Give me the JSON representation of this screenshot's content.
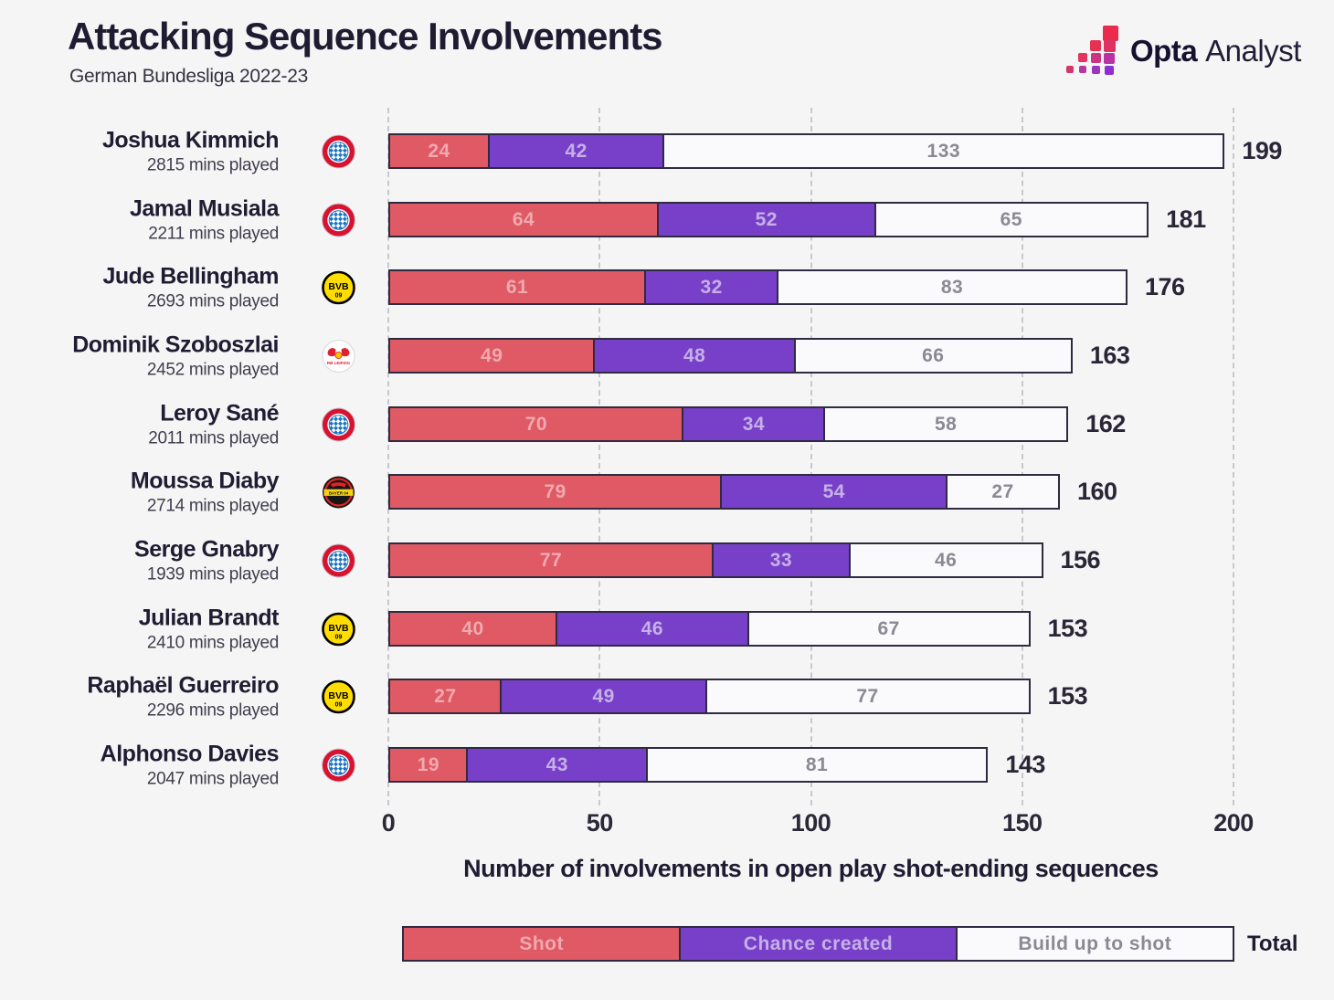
{
  "header": {
    "title": "Attacking Sequence Involvements",
    "subtitle": "German Bundesliga 2022-23",
    "brand": {
      "bold": "Opta",
      "light": "Analyst"
    }
  },
  "chart_data": {
    "type": "bar",
    "stacked": true,
    "orientation": "horizontal",
    "title": "Attacking Sequence Involvements",
    "subtitle": "German Bundesliga 2022-23",
    "xlabel": "Number of involvements in open play shot-ending sequences",
    "xlim": [
      0,
      200
    ],
    "xticks": [
      0,
      50,
      100,
      150,
      200
    ],
    "grid": "dashed-vertical",
    "legend_position": "bottom",
    "series_names": [
      "Shot",
      "Chance created",
      "Build up to shot"
    ],
    "players": [
      {
        "name": "Joshua Kimmich",
        "mins": "2815 mins played",
        "team": "bayern-munich",
        "values": [
          24,
          42,
          133
        ],
        "total": 199
      },
      {
        "name": "Jamal Musiala",
        "mins": "2211 mins played",
        "team": "bayern-munich",
        "values": [
          64,
          52,
          65
        ],
        "total": 181
      },
      {
        "name": "Jude Bellingham",
        "mins": "2693 mins played",
        "team": "borussia-dortmund",
        "values": [
          61,
          32,
          83
        ],
        "total": 176
      },
      {
        "name": "Dominik Szoboszlai",
        "mins": "2452 mins played",
        "team": "rb-leipzig",
        "values": [
          49,
          48,
          66
        ],
        "total": 163
      },
      {
        "name": "Leroy Sané",
        "mins": "2011 mins played",
        "team": "bayern-munich",
        "values": [
          70,
          34,
          58
        ],
        "total": 162
      },
      {
        "name": "Moussa Diaby",
        "mins": "2714 mins played",
        "team": "bayer-leverkusen",
        "values": [
          79,
          54,
          27
        ],
        "total": 160
      },
      {
        "name": "Serge Gnabry",
        "mins": "1939 mins played",
        "team": "bayern-munich",
        "values": [
          77,
          33,
          46
        ],
        "total": 156
      },
      {
        "name": "Julian Brandt",
        "mins": "2410 mins played",
        "team": "borussia-dortmund",
        "values": [
          40,
          46,
          67
        ],
        "total": 153
      },
      {
        "name": "Raphaël Guerreiro",
        "mins": "2296 mins played",
        "team": "borussia-dortmund",
        "values": [
          27,
          49,
          77
        ],
        "total": 153
      },
      {
        "name": "Alphonso Davies",
        "mins": "2047 mins played",
        "team": "bayern-munich",
        "values": [
          19,
          43,
          81
        ],
        "total": 143
      }
    ]
  },
  "legend": {
    "items": [
      {
        "label": "Shot",
        "fill": "#df5a64",
        "label_color": "#f0a9b0"
      },
      {
        "label": "Chance created",
        "fill": "#7840c8",
        "label_color": "#c5b0e8"
      },
      {
        "label": "Build up to shot",
        "fill": "#faf9fb",
        "label_color": "#8b8a94"
      }
    ],
    "total_label": "Total"
  },
  "colors": {
    "background": "#f6f5f6",
    "bar_border": "#2e2a40",
    "grid": "#c8c7cd",
    "text_dark": "#1f1b31",
    "shot": "#df5a64",
    "chance_created": "#7840c8",
    "build_up": "#faf9fb"
  }
}
